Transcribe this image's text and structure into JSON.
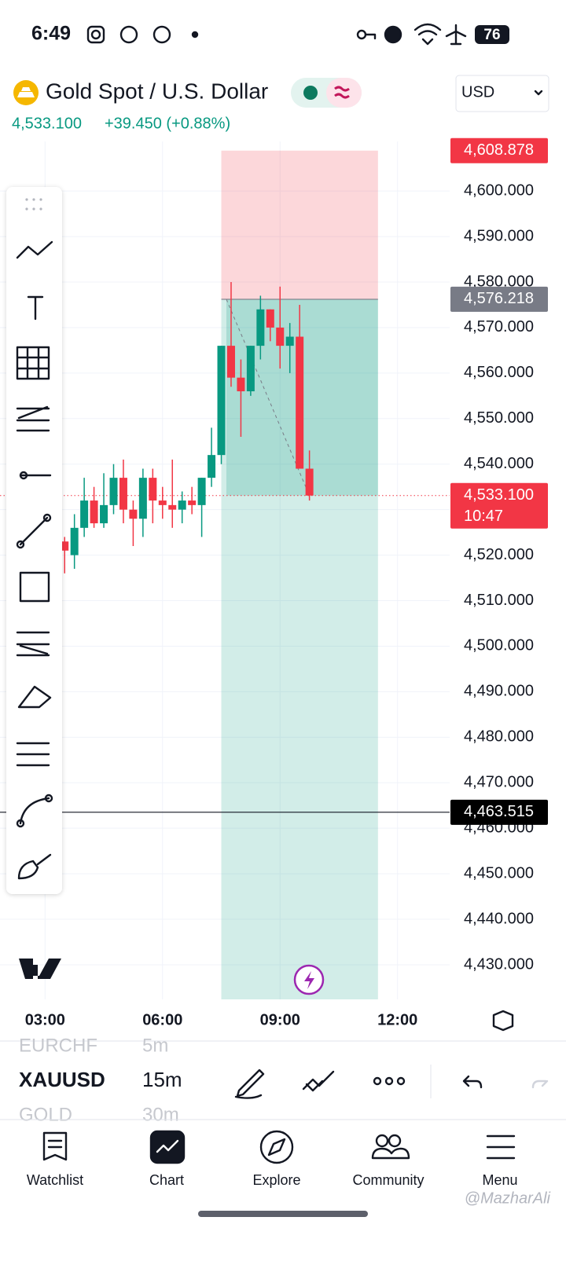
{
  "status_bar": {
    "time": "6:49",
    "battery": "76"
  },
  "header": {
    "title": "Gold Spot / U.S. Dollar",
    "price": "4,533.100",
    "change": "+39.450 (+0.88%)",
    "currency": "USD"
  },
  "chart_data": {
    "type": "candlestick",
    "x": [
      3.5,
      3.75,
      4,
      4.25,
      4.5,
      4.75,
      5,
      5.25,
      5.5,
      5.75,
      6,
      6.25,
      6.5,
      6.75,
      7,
      7.25,
      7.5,
      7.75,
      8,
      8.25,
      8.5,
      8.75,
      9,
      9.25,
      9.5,
      9.75
    ],
    "open": [
      4523,
      4520,
      4526,
      4532,
      4527,
      4531,
      4537,
      4530,
      4528,
      4537,
      4532,
      4531,
      4530,
      4532,
      4531,
      4537,
      4542,
      4566,
      4559,
      4556,
      4566,
      4574,
      4570,
      4566,
      4568,
      4539
    ],
    "high": [
      4524,
      4529,
      4537,
      4535,
      4538,
      4540,
      4541,
      4532,
      4539,
      4539,
      4535,
      4541,
      4534,
      4535,
      4537,
      4548,
      4566,
      4580,
      4563,
      4566,
      4577,
      4574,
      4579,
      4571,
      4575,
      4543
    ],
    "low": [
      4516,
      4517,
      4524,
      4526,
      4526,
      4529,
      4527,
      4522,
      4524,
      4527,
      4528,
      4526,
      4527,
      4529,
      4524,
      4535,
      4540,
      4557,
      4546,
      4555,
      4563,
      4567,
      4561,
      4560,
      4540,
      4532
    ],
    "close": [
      4521,
      4526,
      4532,
      4527,
      4531,
      4537,
      4530,
      4528,
      4537,
      4532,
      4531,
      4530,
      4532,
      4531,
      4537,
      4542,
      4566,
      4559,
      4556,
      4566,
      4574,
      4570,
      4566,
      4568,
      4539,
      4533.1
    ],
    "up_color": "#089981",
    "down_color": "#f23645",
    "xlim": [
      1.85,
      13.33
    ],
    "xticks": [
      {
        "value": 3,
        "label": "03:00"
      },
      {
        "value": 6,
        "label": "06:00"
      },
      {
        "value": 9,
        "label": "09:00"
      },
      {
        "value": 12,
        "label": "12:00"
      }
    ],
    "ylim": [
      4422.4,
      4610.9
    ],
    "yticks": [
      {
        "value": 4430,
        "label": "4,430.000"
      },
      {
        "value": 4440,
        "label": "4,440.000"
      },
      {
        "value": 4450,
        "label": "4,450.000"
      },
      {
        "value": 4460,
        "label": "4,460.000"
      },
      {
        "value": 4470,
        "label": "4,470.000"
      },
      {
        "value": 4480,
        "label": "4,480.000"
      },
      {
        "value": 4490,
        "label": "4,490.000"
      },
      {
        "value": 4500,
        "label": "4,500.000"
      },
      {
        "value": 4510,
        "label": "4,510.000"
      },
      {
        "value": 4520,
        "label": "4,520.000"
      },
      {
        "value": 4530,
        "label": "4,530.000"
      },
      {
        "value": 4540,
        "label": "4,540.000"
      },
      {
        "value": 4550,
        "label": "4,550.000"
      },
      {
        "value": 4560,
        "label": "4,560.000"
      },
      {
        "value": 4570,
        "label": "4,570.000"
      },
      {
        "value": 4580,
        "label": "4,580.000"
      },
      {
        "value": 4590,
        "label": "4,590.000"
      },
      {
        "value": 4600,
        "label": "4,600.000"
      }
    ],
    "grid": true,
    "position": {
      "x": [
        7.5,
        11.5
      ],
      "entry": {
        "value": 4576.218,
        "label": "4,576.218"
      },
      "stop": {
        "value": 4608.878,
        "label": "4,608.878"
      }
    },
    "current_price": {
      "value": 4533.1,
      "label": "4,533.100",
      "countdown": "10:47"
    },
    "horizontal_line": {
      "value": 4463.515,
      "label": "4,463.515"
    }
  },
  "symbols": [
    {
      "symbol": "EURCHF",
      "interval": "5m"
    },
    {
      "symbol": "XAUUSD",
      "interval": "15m"
    },
    {
      "symbol": "GOLD",
      "interval": "30m"
    }
  ],
  "nav": [
    "Watchlist",
    "Chart",
    "Explore",
    "Community",
    "Menu"
  ],
  "watermark": "@MazharAli"
}
